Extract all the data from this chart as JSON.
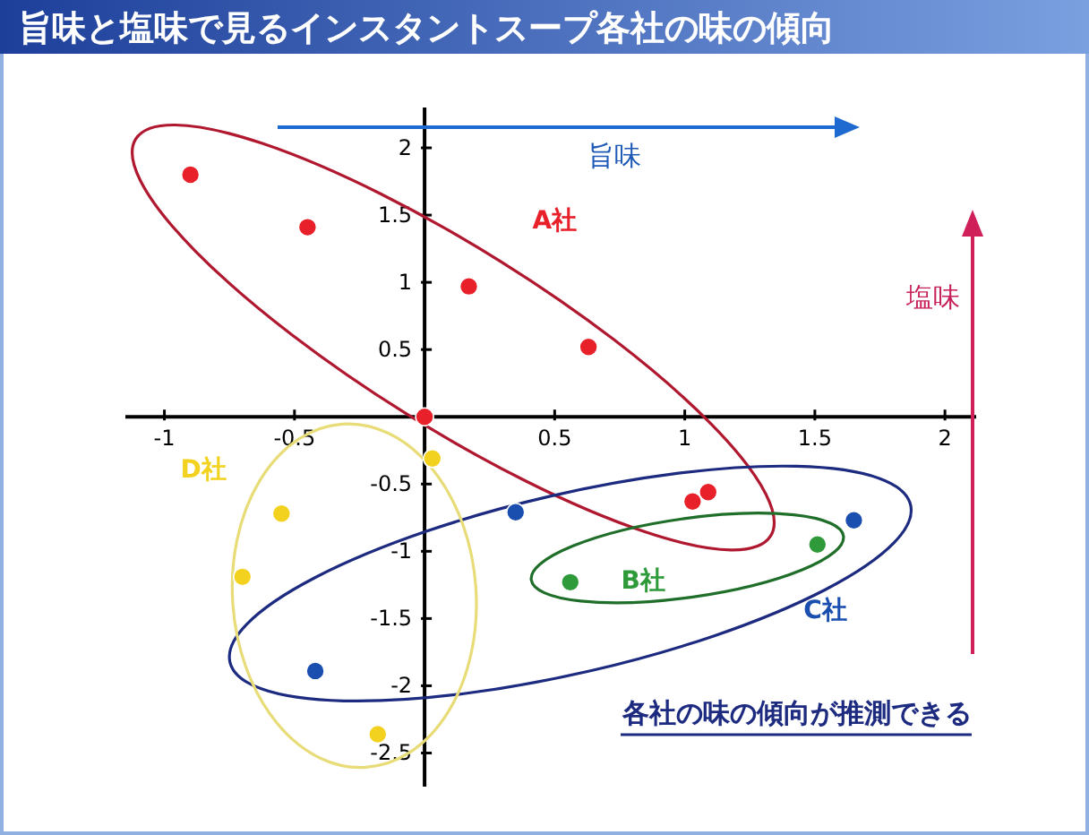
{
  "chart_data": {
    "type": "scatter",
    "title": "旨味と塩味で見るインスタントスープ各社の味の傾向",
    "xlabel": "旨味",
    "ylabel": "塩味",
    "annotations": [
      "各社の味の傾向が推測できる"
    ],
    "xlim": [
      -1.15,
      2.12
    ],
    "ylim": [
      -2.75,
      2.3
    ],
    "xticks": [
      -1,
      -0.5,
      0.5,
      1,
      1.5,
      2
    ],
    "yticks": [
      -2.5,
      -2,
      -1.5,
      -1,
      -0.5,
      0.5,
      1,
      1.5,
      2
    ],
    "grid": false,
    "marker": "circle",
    "series": [
      {
        "name": "A社",
        "color": "#e8202a",
        "x": [
          -0.9,
          -0.45,
          0.17,
          0.63,
          0,
          1.03,
          1.09
        ],
        "values": [
          1.8,
          1.41,
          0.97,
          0.52,
          0,
          -0.63,
          -0.56
        ]
      },
      {
        "name": "B社",
        "color": "#2e9a3a",
        "x": [
          0.56,
          1.51
        ],
        "values": [
          -1.23,
          -0.95
        ]
      },
      {
        "name": "C社",
        "color": "#1a4fb0",
        "x": [
          0.35,
          -0.42,
          1.65
        ],
        "values": [
          -0.71,
          -1.89,
          -0.77
        ]
      },
      {
        "name": "D社",
        "color": "#f2d21e",
        "x": [
          0.03,
          -0.55,
          -0.7,
          -0.18
        ],
        "values": [
          -0.31,
          -0.72,
          -1.19,
          -2.36
        ]
      }
    ]
  }
}
